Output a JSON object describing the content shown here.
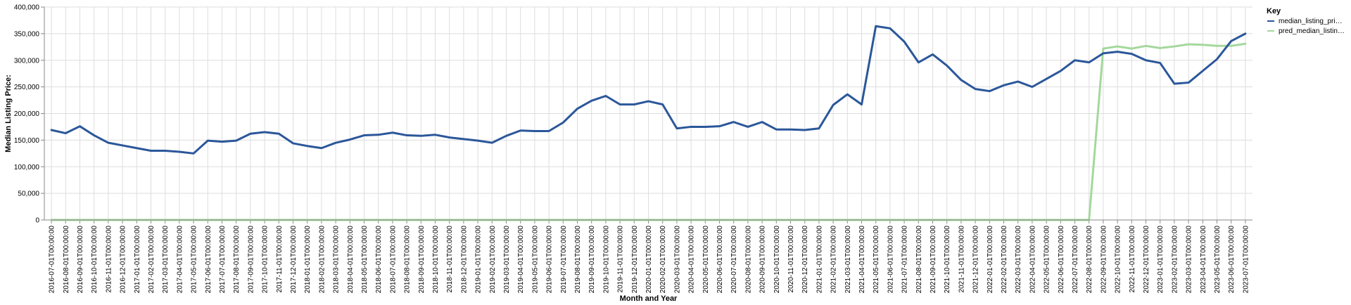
{
  "chart_data": {
    "type": "line",
    "xlabel": "Month and Year",
    "ylabel": "Median Listing Price:",
    "ylim": [
      0,
      400000
    ],
    "yticks": [
      "0",
      "50,000",
      "100,000",
      "150,000",
      "200,000",
      "250,000",
      "300,000",
      "350,000",
      "400,000"
    ],
    "yticks_values": [
      0,
      50000,
      100000,
      150000,
      200000,
      250000,
      300000,
      350000,
      400000
    ],
    "grid": true,
    "legend_position": "right",
    "legend": {
      "title": "Key",
      "entries": [
        "median_listing_pri…",
        "pred_median_listin…"
      ]
    },
    "x": [
      "2016-07-01T00:00:00",
      "2016-08-01T00:00:00",
      "2016-09-01T00:00:00",
      "2016-10-01T00:00:00",
      "2016-11-01T00:00:00",
      "2016-12-01T00:00:00",
      "2017-01-01T00:00:00",
      "2017-02-01T00:00:00",
      "2017-03-01T00:00:00",
      "2017-04-01T00:00:00",
      "2017-05-01T00:00:00",
      "2017-06-01T00:00:00",
      "2017-07-01T00:00:00",
      "2017-08-01T00:00:00",
      "2017-09-01T00:00:00",
      "2017-10-01T00:00:00",
      "2017-11-01T00:00:00",
      "2017-12-01T00:00:00",
      "2018-01-01T00:00:00",
      "2018-02-01T00:00:00",
      "2018-03-01T00:00:00",
      "2018-04-01T00:00:00",
      "2018-05-01T00:00:00",
      "2018-06-01T00:00:00",
      "2018-07-01T00:00:00",
      "2018-08-01T00:00:00",
      "2018-09-01T00:00:00",
      "2018-10-01T00:00:00",
      "2018-11-01T00:00:00",
      "2018-12-01T00:00:00",
      "2019-01-01T00:00:00",
      "2019-02-01T00:00:00",
      "2019-03-01T00:00:00",
      "2019-04-01T00:00:00",
      "2019-05-01T00:00:00",
      "2019-06-01T00:00:00",
      "2019-07-01T00:00:00",
      "2019-08-01T00:00:00",
      "2019-09-01T00:00:00",
      "2019-10-01T00:00:00",
      "2019-11-01T00:00:00",
      "2019-12-01T00:00:00",
      "2020-01-01T00:00:00",
      "2020-02-01T00:00:00",
      "2020-03-01T00:00:00",
      "2020-04-01T00:00:00",
      "2020-05-01T00:00:00",
      "2020-06-01T00:00:00",
      "2020-07-01T00:00:00",
      "2020-08-01T00:00:00",
      "2020-09-01T00:00:00",
      "2020-10-01T00:00:00",
      "2020-11-01T00:00:00",
      "2020-12-01T00:00:00",
      "2021-01-01T00:00:00",
      "2021-02-01T00:00:00",
      "2021-03-01T00:00:00",
      "2021-04-01T00:00:00",
      "2021-05-01T00:00:00",
      "2021-06-01T00:00:00",
      "2021-07-01T00:00:00",
      "2021-08-01T00:00:00",
      "2021-09-01T00:00:00",
      "2021-10-01T00:00:00",
      "2021-11-01T00:00:00",
      "2021-12-01T00:00:00",
      "2022-01-01T00:00:00",
      "2022-02-01T00:00:00",
      "2022-03-01T00:00:00",
      "2022-04-01T00:00:00",
      "2022-05-01T00:00:00",
      "2022-06-01T00:00:00",
      "2022-07-01T00:00:00",
      "2022-08-01T00:00:00",
      "2022-09-01T00:00:00",
      "2022-10-01T00:00:00",
      "2022-11-01T00:00:00",
      "2022-12-01T00:00:00",
      "2023-01-01T00:00:00",
      "2023-02-01T00:00:00",
      "2023-03-01T00:00:00",
      "2023-04-01T00:00:00",
      "2023-05-01T00:00:00",
      "2023-06-01T00:00:00",
      "2023-07-01T00:00:00"
    ],
    "x_tick_labels": [
      "2016-07-01T00:00:00",
      "2016-08-01T00:00:00",
      "2016-09-01T00:00:00",
      "2016-10-01T00:00:00",
      "2016-11-01T00:00:00",
      "2016-12-01T00:00:00",
      "2017-01-01T00:00:00",
      "2017-02-01T00:00:00",
      "2017-03-01T00:00:00",
      "2017-04-01T00:00:00",
      "2017-05-01T00:00:00",
      "2017-06-01T00:00:00",
      "2017-07-01T00:00:00",
      "2017-08-01T00:00:00",
      "2017-09-01T00:00:00",
      "2017-10-01T00:00:00",
      "2017-11-01T00:00:00",
      "2017-12-01T00:00:00",
      "2018-01-01T00:00:00",
      "2018-02-01T00:00:00",
      "2018-03-01T00:00:00",
      "2018-04-01T00:00:00",
      "2018-05-01T00:00:00",
      "2018-06-01T00:00:00",
      "2018-07-01T00:00:00",
      "2018-08-01T00:00:00",
      "2018-09-01T00:00:00",
      "2018-10-01T00:00:00",
      "2018-11-01T00:00:00",
      "2018-12-01T00:00:00",
      "2019-01-01T00:00:00",
      "2019-02-01T00:00:00",
      "2019-03-01T00:00:00",
      "2019-04-01T00:00:00",
      "2019-05-01T00:00:00",
      "2019-06-01T00:00:00",
      "2019-07-01T00:00:00",
      "2019-08-01T00:00:00",
      "2019-09-01T00:00:00",
      "2019-10-01T00:00:00",
      "2019-11-01T00:00:00",
      "2019-12-01T00:00:00",
      "2020-01-01T00:00:00",
      "2020-02-01T00:00:00",
      "2020-03-01T00:00:00",
      "2020-04-01T00:00:00",
      "2020-05-01T00:00:00",
      "2020-06-01T00:00:00",
      "2020-07-01T00:00:00",
      "2020-08-01T00:00:00",
      "2020-09-01T00:00:00",
      "2020-10-01T00:00:00",
      "2020-11-01T00:00:00",
      "2020-12-01T00:00:00",
      "2021-01-01T00:00:00",
      "2021-02-01T00:00:00",
      "2021-03-01T00:00:00",
      "2021-04-01T00:00:00",
      "2021-05-01T00:00:00",
      "2021-06-01T00:00:00",
      "2021-07-01T00:00:00",
      "2021-08-01T00:00:00",
      "2021-09-01T00:00:00",
      "2021-10-01T00:00:00",
      "2021-11-01T00:00:00",
      "2021-12-01T00:00:00",
      "2022-01-01T00:00:00",
      "2022-02-01T00:00:00",
      "2022-03-01T00:00:00",
      "2022-04-01T00:00:00",
      "2022-05-01T00:00:00",
      "2022-06-01T00:00:00",
      "2022-07-01T00:00:00",
      "2022-08-01T00:00:00",
      "2022-09-01T00:00:00",
      "2022-10-01T00:00:00",
      "2022-11-01T00:00:00",
      "2022-12-01T00:00:00",
      "2023-01-01T00:00:00",
      "2023-02-01T00:00:00",
      "2023-03-01T00:00:00",
      "2023-04-01T00:00:00",
      "2023-05-01T00:00:00",
      "2023-06-01T00:00:00",
      "2023-07-01T00:00:00"
    ],
    "series": [
      {
        "name": "median_listing_pri…",
        "color": "#2b579a",
        "values": [
          169000,
          163000,
          176000,
          159000,
          145000,
          140000,
          135000,
          130000,
          130000,
          128000,
          125000,
          149000,
          147000,
          149000,
          162000,
          165000,
          162000,
          144000,
          139000,
          135000,
          145000,
          151000,
          159000,
          160000,
          164000,
          159000,
          158000,
          160000,
          155000,
          152000,
          149000,
          145000,
          158000,
          168000,
          167000,
          167000,
          183000,
          209000,
          224000,
          233000,
          217000,
          217000,
          223000,
          217000,
          172000,
          175000,
          175000,
          176000,
          184000,
          175000,
          184000,
          170000,
          170000,
          169000,
          172000,
          216000,
          236000,
          217000,
          364000,
          360000,
          335000,
          296000,
          311000,
          290000,
          263000,
          246000,
          242000,
          253000,
          260000,
          250000,
          265000,
          280000,
          300000,
          296000,
          313000,
          316000,
          312000,
          300000,
          295000,
          256000,
          258000,
          280000,
          302000,
          336000,
          350000
        ]
      },
      {
        "name": "pred_median_listin…",
        "color": "#a4d89c",
        "values": [
          0,
          0,
          0,
          0,
          0,
          0,
          0,
          0,
          0,
          0,
          0,
          0,
          0,
          0,
          0,
          0,
          0,
          0,
          0,
          0,
          0,
          0,
          0,
          0,
          0,
          0,
          0,
          0,
          0,
          0,
          0,
          0,
          0,
          0,
          0,
          0,
          0,
          0,
          0,
          0,
          0,
          0,
          0,
          0,
          0,
          0,
          0,
          0,
          0,
          0,
          0,
          0,
          0,
          0,
          0,
          0,
          0,
          0,
          0,
          0,
          0,
          0,
          0,
          0,
          0,
          0,
          0,
          0,
          0,
          0,
          0,
          0,
          0,
          0,
          322000,
          326000,
          322000,
          327000,
          323000,
          326000,
          330000,
          329000,
          327000,
          327000,
          331000
        ]
      }
    ]
  }
}
